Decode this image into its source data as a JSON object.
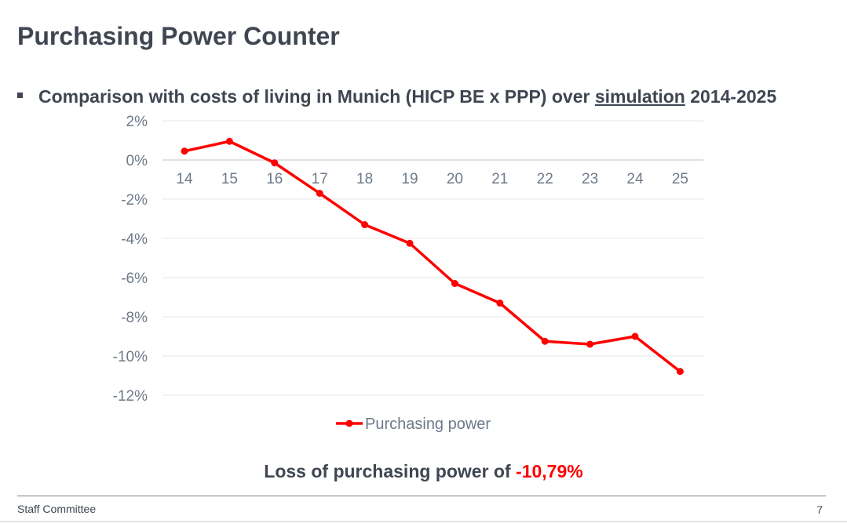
{
  "slide": {
    "title": "Purchasing Power Counter",
    "bullet": {
      "before": "Comparison with costs of living in Munich (HICP BE x PPP) over ",
      "underlined": "simulation",
      "after": " 2014-2025"
    },
    "conclusion": {
      "text": "Loss of purchasing power of ",
      "value": "-10,79%"
    },
    "footer": {
      "left": "Staff Committee",
      "page_number": "7"
    }
  },
  "chart_data": {
    "type": "line",
    "x": [
      "14",
      "15",
      "16",
      "17",
      "18",
      "19",
      "20",
      "21",
      "22",
      "23",
      "24",
      "25"
    ],
    "series": [
      {
        "name": "Purchasing power",
        "values": [
          0.45,
          0.95,
          -0.15,
          -1.7,
          -3.3,
          -4.25,
          -6.3,
          -7.3,
          -9.25,
          -9.4,
          -9.0,
          -10.79
        ],
        "color": "#ff0000"
      }
    ],
    "y_ticks": [
      2,
      0,
      -2,
      -4,
      -6,
      -8,
      -10,
      -12
    ],
    "y_tick_labels": [
      "2%",
      "0%",
      "-2%",
      "-4%",
      "-6%",
      "-8%",
      "-10%",
      "-12%"
    ],
    "ylim": [
      -12,
      2
    ],
    "grid": true,
    "legend": "bottom-center",
    "colors": {
      "grid": "#e4e4e4",
      "axis": "#cfcfcf",
      "tick_text": "#6e7a8a"
    }
  }
}
